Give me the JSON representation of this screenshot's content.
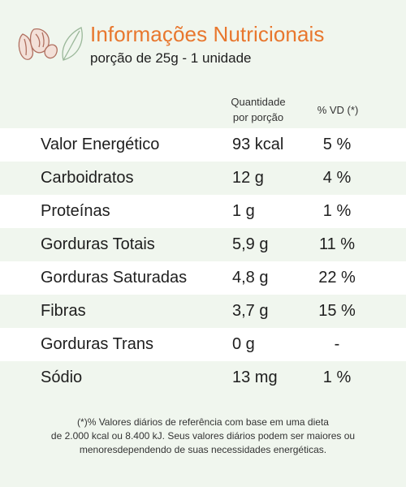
{
  "header": {
    "title": "Informações Nutricionais",
    "subtitle": "porção de 25g - 1 unidade",
    "logo_icon": "nuts-and-leaf-icon"
  },
  "table": {
    "col_quantity": "Quantidade",
    "col_quantity_2": "por porção",
    "col_vd": "% VD (*)",
    "rows": [
      {
        "name": "Valor Energético",
        "qty": "93 kcal",
        "vd": "5 %"
      },
      {
        "name": "Carboidratos",
        "qty": "12 g",
        "vd": "4 %"
      },
      {
        "name": "Proteínas",
        "qty": "1 g",
        "vd": "1 %"
      },
      {
        "name": "Gorduras Totais",
        "qty": "5,9 g",
        "vd": "11 %"
      },
      {
        "name": "Gorduras Saturadas",
        "qty": "4,8 g",
        "vd": "22 %"
      },
      {
        "name": "Fibras",
        "qty": "3,7 g",
        "vd": "15 %"
      },
      {
        "name": "Gorduras Trans",
        "qty": "0 g",
        "vd": "-"
      },
      {
        "name": "Sódio",
        "qty": "13 mg",
        "vd": "1 %"
      }
    ]
  },
  "footnote": {
    "line1": "(*)% Valores diários de referência com base em uma dieta",
    "line2": "de 2.000 kcal ou 8.400 kJ. Seus valores diários podem ser maiores ou",
    "line3": "menoresdependendo de suas necessidades energéticas."
  },
  "colors": {
    "title": "#e8772e",
    "background": "#f0f6ee",
    "row_white": "#ffffff"
  }
}
